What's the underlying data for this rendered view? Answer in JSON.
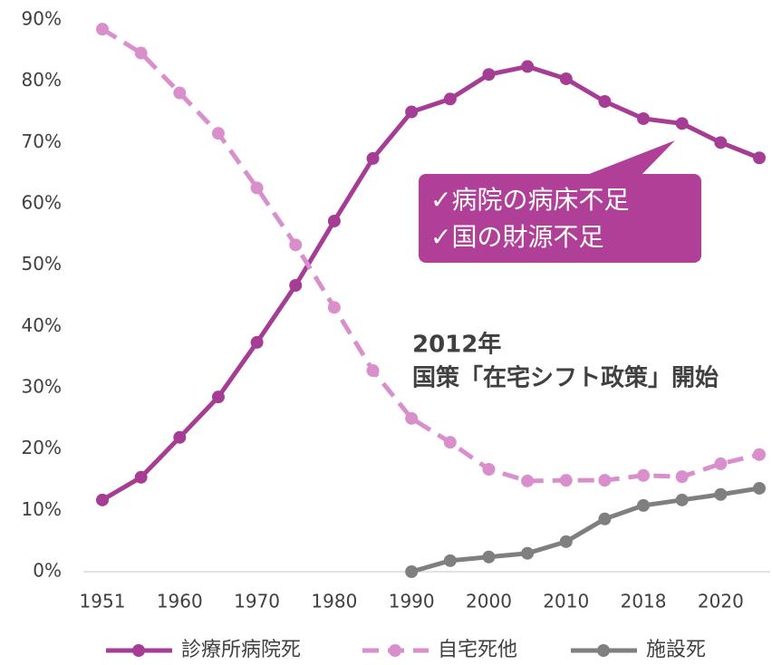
{
  "chart_data": {
    "type": "line",
    "categories": [
      "1951",
      null,
      "1960",
      null,
      "1970",
      null,
      "1980",
      null,
      "1990",
      null,
      "2000",
      null,
      "2010",
      null,
      "2018",
      null,
      "2020",
      null
    ],
    "series": [
      {
        "name": "診療所病院死",
        "color": "#a63d94",
        "style": "solid",
        "values": [
          11.7,
          15.4,
          21.9,
          28.5,
          37.4,
          46.7,
          57.2,
          67.4,
          75.0,
          77.1,
          81.1,
          82.4,
          80.4,
          76.7,
          73.9,
          73.1,
          70.0,
          67.5
        ]
      },
      {
        "name": "自宅死他",
        "color": "#d98fcb",
        "style": "dashed",
        "values": [
          88.5,
          84.6,
          78.1,
          71.5,
          62.6,
          53.3,
          43.1,
          32.8,
          25.0,
          21.1,
          16.7,
          14.8,
          14.9,
          14.9,
          15.7,
          15.5,
          17.6,
          19.1
        ]
      },
      {
        "name": "施設死",
        "color": "#7f7f7f",
        "style": "solid",
        "values": [
          null,
          null,
          null,
          null,
          null,
          null,
          null,
          null,
          0,
          1.8,
          2.4,
          3.0,
          4.9,
          8.6,
          10.8,
          11.7,
          12.6,
          13.6
        ]
      }
    ],
    "ylim": [
      0,
      90
    ],
    "yticks": [
      {
        "value": 0,
        "label": "0%"
      },
      {
        "value": 10,
        "label": "10%"
      },
      {
        "value": 20,
        "label": "20%"
      },
      {
        "value": 30,
        "label": "30%"
      },
      {
        "value": 40,
        "label": "40%"
      },
      {
        "value": 50,
        "label": "50%"
      },
      {
        "value": 60,
        "label": "60%"
      },
      {
        "value": 70,
        "label": "70%"
      },
      {
        "value": 80,
        "label": "80%"
      },
      {
        "value": 90,
        "label": "90%"
      }
    ],
    "callout": [
      "✓病院の病床不足",
      "✓国の財源不足"
    ],
    "annotation": [
      "2012年",
      "国策「在宅シフト政策」開始"
    ],
    "legend": "bottom"
  }
}
